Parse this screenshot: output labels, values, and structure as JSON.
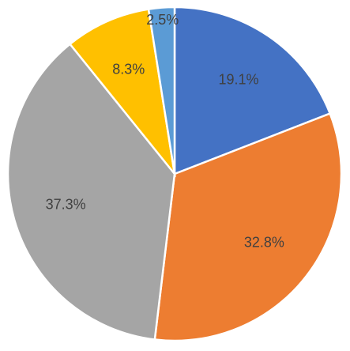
{
  "chart_data": {
    "type": "pie",
    "categories": [
      null,
      null,
      null,
      null,
      null
    ],
    "values": [
      19.1,
      32.8,
      37.3,
      8.3,
      2.5
    ],
    "value_labels": [
      "19.1%",
      "32.8%",
      "37.3%",
      "8.3%",
      "2.5%"
    ],
    "colors": [
      "#4472c4",
      "#ed7d31",
      "#a5a5a5",
      "#ffc000",
      "#5b9bd5"
    ]
  }
}
